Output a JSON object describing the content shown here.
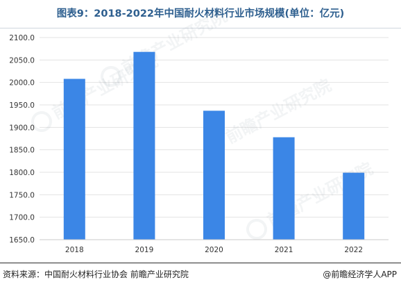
{
  "header": {
    "title": "图表9：2018-2022年中国耐火材料行业市场规模(单位：亿元)"
  },
  "footer": {
    "source": "资料来源：中国耐火材料行业协会 前瞻产业研究院",
    "credit": "@前瞻经济学人APP"
  },
  "watermark": {
    "text": "前瞻产业研究院"
  },
  "colors": {
    "bar": "#3b86e6",
    "title": "#2e5f8f",
    "grid": "#e3e3e3"
  },
  "chart_data": {
    "type": "bar",
    "categories": [
      "2018",
      "2019",
      "2020",
      "2021",
      "2022"
    ],
    "values": [
      2008,
      2068,
      1937,
      1878,
      1799
    ],
    "title": "图表9：2018-2022年中国耐火材料行业市场规模(单位：亿元)",
    "xlabel": "",
    "ylabel": "",
    "ylim": [
      1650,
      2100
    ],
    "yticks": [
      "2100.0",
      "2050.0",
      "2000.0",
      "1950.0",
      "1900.0",
      "1850.0",
      "1800.0",
      "1750.0",
      "1700.0",
      "1650.0"
    ],
    "grid": true,
    "legend": "none"
  }
}
